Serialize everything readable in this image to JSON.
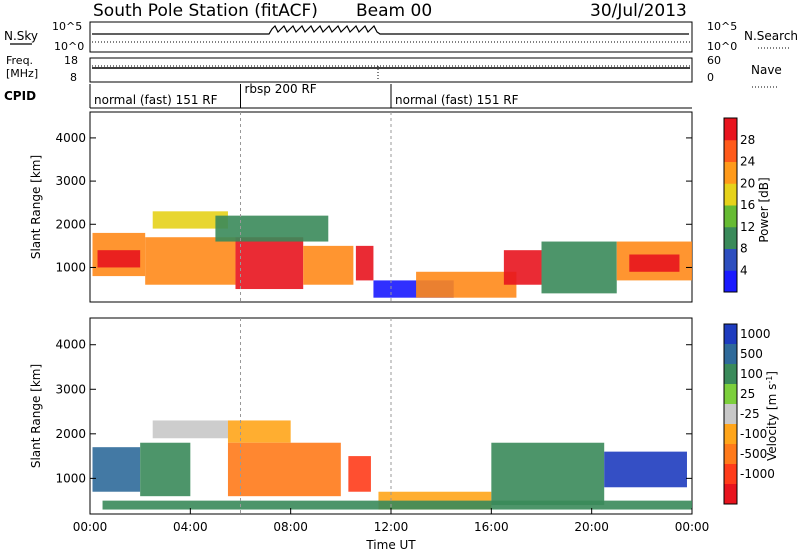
{
  "header": {
    "station": "South Pole Station (fitACF)",
    "beam": "Beam 00",
    "date": "30/Jul/2013"
  },
  "top_panels": {
    "nsky_label": "N.Sky",
    "nsky_ticks": [
      "10^5",
      "10^0"
    ],
    "nsearch_label": "N.Search",
    "nsearch_ticks": [
      "10^5",
      "10^0"
    ],
    "freq_label_1": "Freq.",
    "freq_label_2": "[MHz]",
    "freq_ticks": [
      "18",
      "8"
    ],
    "nave_label": "Nave",
    "nave_ticks": [
      "60",
      "0"
    ],
    "cpid_label": "CPID",
    "cpid_segments": [
      {
        "label": "normal (fast) 151 RF",
        "start_hour": 0,
        "end_hour": 6
      },
      {
        "label": "rbsp 200 RF",
        "start_hour": 6,
        "end_hour": 12
      },
      {
        "label": "normal (fast) 151 RF",
        "start_hour": 12,
        "end_hour": 24
      }
    ]
  },
  "chart_data": [
    {
      "type": "heatmap",
      "name": "power",
      "ylabel": "Slant Range [km]",
      "ylim": [
        200,
        4600
      ],
      "yticks": [
        "1000",
        "2000",
        "3000",
        "4000"
      ],
      "yticks_values": [
        1000,
        2000,
        3000,
        4000
      ],
      "xlim": [
        0,
        24
      ],
      "colorbar_label": "Power [dB]",
      "colorbar_ticks": [
        "4",
        "8",
        "12",
        "16",
        "20",
        "24",
        "28"
      ],
      "colorbar_colors": [
        "#1a1aff",
        "#2e4fbf",
        "#3a8a5a",
        "#66bb33",
        "#e6d21a",
        "#ff9a1a",
        "#ff5a1a",
        "#e8141e"
      ],
      "bands": [
        {
          "t0": 0.1,
          "t1": 2.2,
          "r0": 800,
          "r1": 1800,
          "color": "#ff8a1a"
        },
        {
          "t0": 0.3,
          "t1": 2.0,
          "r0": 1000,
          "r1": 1400,
          "color": "#e8141e"
        },
        {
          "t0": 2.2,
          "t1": 5.8,
          "r0": 600,
          "r1": 1700,
          "color": "#ff8a1a"
        },
        {
          "t0": 2.5,
          "t1": 5.5,
          "r0": 1900,
          "r1": 2300,
          "color": "#e6d21a"
        },
        {
          "t0": 5.8,
          "t1": 8.5,
          "r0": 500,
          "r1": 1700,
          "color": "#e8141e"
        },
        {
          "t0": 5.0,
          "t1": 9.5,
          "r0": 1600,
          "r1": 2200,
          "color": "#3a8a5a"
        },
        {
          "t0": 8.5,
          "t1": 10.5,
          "r0": 600,
          "r1": 1500,
          "color": "#ff8a1a"
        },
        {
          "t0": 10.6,
          "t1": 11.3,
          "r0": 700,
          "r1": 1500,
          "color": "#e8141e"
        },
        {
          "t0": 11.3,
          "t1": 14.5,
          "r0": 300,
          "r1": 700,
          "color": "#1a1aff"
        },
        {
          "t0": 13.0,
          "t1": 17.0,
          "r0": 300,
          "r1": 900,
          "color": "#ff8a1a"
        },
        {
          "t0": 16.5,
          "t1": 18.0,
          "r0": 600,
          "r1": 1400,
          "color": "#e8141e"
        },
        {
          "t0": 18.0,
          "t1": 21.0,
          "r0": 400,
          "r1": 1600,
          "color": "#3a8a5a"
        },
        {
          "t0": 21.0,
          "t1": 24.0,
          "r0": 700,
          "r1": 1600,
          "color": "#ff8a1a"
        },
        {
          "t0": 21.5,
          "t1": 23.5,
          "r0": 900,
          "r1": 1300,
          "color": "#e8141e"
        }
      ]
    },
    {
      "type": "heatmap",
      "name": "velocity",
      "ylabel": "Slant Range [km]",
      "xlabel": "Time UT",
      "ylim": [
        200,
        4600
      ],
      "yticks": [
        "1000",
        "2000",
        "3000",
        "4000"
      ],
      "yticks_values": [
        1000,
        2000,
        3000,
        4000
      ],
      "xlim": [
        0,
        24
      ],
      "xticks": [
        "00:00",
        "04:00",
        "08:00",
        "12:00",
        "16:00",
        "20:00",
        "00:00"
      ],
      "xticks_values": [
        0,
        4,
        8,
        12,
        16,
        20,
        24
      ],
      "colorbar_label": "Velocity [m s",
      "colorbar_label_sup": "-1",
      "colorbar_label_end": "]",
      "colorbar_ticks": [
        "1000",
        "500",
        "100",
        "25",
        "-25",
        "-100",
        "-500",
        "-1000"
      ],
      "colorbar_colors": [
        "#1e3cbf",
        "#2f6a9a",
        "#3a8a5a",
        "#7ccf3c",
        "#c8c8c8",
        "#ffa51a",
        "#ff7a1a",
        "#ff3c1a",
        "#e8141e"
      ],
      "bands": [
        {
          "t0": 0.1,
          "t1": 2.0,
          "r0": 700,
          "r1": 1700,
          "color": "#2f6a9a"
        },
        {
          "t0": 2.0,
          "t1": 4.0,
          "r0": 600,
          "r1": 1800,
          "color": "#3a8a5a"
        },
        {
          "t0": 2.5,
          "t1": 5.5,
          "r0": 1900,
          "r1": 2300,
          "color": "#c8c8c8"
        },
        {
          "t0": 5.5,
          "t1": 8.0,
          "r0": 1800,
          "r1": 2300,
          "color": "#ffa51a"
        },
        {
          "t0": 5.5,
          "t1": 10.0,
          "r0": 600,
          "r1": 1800,
          "color": "#ff7a1a"
        },
        {
          "t0": 10.3,
          "t1": 11.2,
          "r0": 700,
          "r1": 1500,
          "color": "#ff3c1a"
        },
        {
          "t0": 11.5,
          "t1": 16.0,
          "r0": 300,
          "r1": 700,
          "color": "#ffa51a"
        },
        {
          "t0": 16.0,
          "t1": 20.5,
          "r0": 400,
          "r1": 1800,
          "color": "#3a8a5a"
        },
        {
          "t0": 20.5,
          "t1": 23.8,
          "r0": 800,
          "r1": 1600,
          "color": "#1e3cbf"
        },
        {
          "t0": 0.5,
          "t1": 24.0,
          "r0": 300,
          "r1": 500,
          "color": "#3a8a5a"
        }
      ]
    }
  ]
}
